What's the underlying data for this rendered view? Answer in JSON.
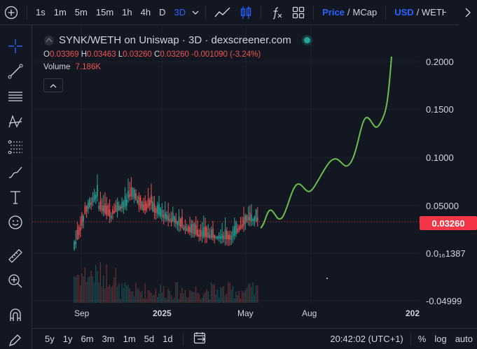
{
  "toolbar": {
    "add_icon": "plus-circle-icon",
    "intervals": [
      "1s",
      "1m",
      "5m",
      "15m",
      "1h",
      "4h",
      "D",
      "3D"
    ],
    "active_interval": "3D",
    "price_label": "Price",
    "slash": "/",
    "mcap_label": "MCap",
    "currency_label": "USD",
    "currency_alt": "/ WETH",
    "accent": "#2962ff"
  },
  "legend": {
    "symbol": "SYNK/WETH on Uniswap · 3D · dexscreener.com",
    "o_label": "O",
    "o_value": "0.03369",
    "h_label": "H",
    "h_value": "0.03463",
    "l_label": "L",
    "l_value": "0.03260",
    "c_label": "C",
    "c_value": "0.03260",
    "change": "-0.001090 (-3.24%)",
    "volume_label": "Volume",
    "volume_value": "7.186K"
  },
  "price_scale": {
    "labels": [
      "0.2000",
      "0.1500",
      "0.1000",
      "0.05000",
      "0.0₁₆1387",
      "-0.04999"
    ],
    "current_price": "0.03260",
    "current_color": "#f23645"
  },
  "time_scale": {
    "labels": [
      "Sep",
      "2025",
      "May",
      "Aug",
      "202"
    ]
  },
  "bottombar": {
    "ranges": [
      "5y",
      "1y",
      "6m",
      "3m",
      "1m",
      "5d",
      "1d"
    ],
    "time": "20:42:02 (UTC+1)",
    "percent": "%",
    "log": "log",
    "auto": "auto"
  },
  "colors": {
    "up": "#26a69a",
    "down": "#ef5350",
    "projection": "#6abf4b",
    "grid": "#1e222d"
  }
}
